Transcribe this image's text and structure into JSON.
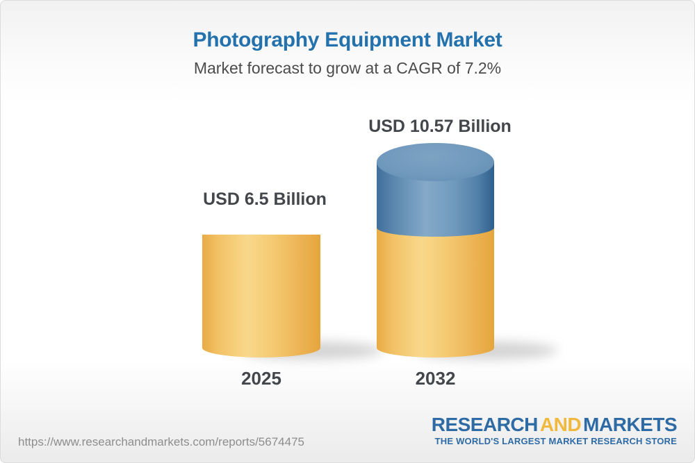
{
  "header": {
    "title": "Photography Equipment Market",
    "subtitle": "Market forecast to grow at a CAGR of 7.2%"
  },
  "chart_data": {
    "type": "bar",
    "title": "Photography Equipment Market",
    "subtitle": "Market forecast to grow at a CAGR of 7.2%",
    "categories": [
      "2025",
      "2032"
    ],
    "values": [
      6.5,
      10.57
    ],
    "value_labels": [
      "USD 6.5 Billion",
      "USD 10.57 Billion"
    ],
    "unit": "USD Billion",
    "cagr_percent": 7.2,
    "bar_style": "3d-cylinder",
    "segments_2032": {
      "base_value": 6.5,
      "growth_value": 4.07
    },
    "colors": {
      "base_segment": "#f3c76e",
      "growth_segment": "#6590b6",
      "label_text": "#43464b"
    },
    "legend_position": "none",
    "grid": false
  },
  "footer": {
    "url": "https://www.researchandmarkets.com/reports/5674475",
    "logo": {
      "word1": "RESEARCH",
      "word2": "AND",
      "word3": "MARKETS",
      "tagline": "THE WORLD'S LARGEST MARKET RESEARCH STORE"
    }
  },
  "colors": {
    "title_blue": "#2472ad",
    "subtitle_gray": "#4b4b4b",
    "logo_blue": "#2e6ba5",
    "logo_gold": "#f0b93e",
    "url_gray": "#8d8d8d"
  }
}
